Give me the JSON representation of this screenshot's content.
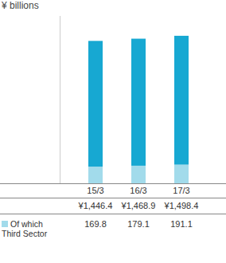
{
  "chart_data": {
    "type": "bar",
    "subtitle": "¥ billions",
    "categories": [
      "15/3",
      "16/3",
      "17/3"
    ],
    "series": [
      {
        "values": [
          1446.4,
          1468.9,
          1498.4
        ],
        "value_labels": [
          "¥1,446.4",
          "¥1,468.9",
          "¥1,498.4"
        ],
        "color": "#17a8d2"
      },
      {
        "name": "Of which Third Sector",
        "values": [
          169.8,
          179.1,
          191.1
        ],
        "color": "#a2dbeb"
      }
    ],
    "ylim": [
      0,
      1700
    ],
    "stacked": false,
    "data_labels": true,
    "tick_labels": "x"
  }
}
